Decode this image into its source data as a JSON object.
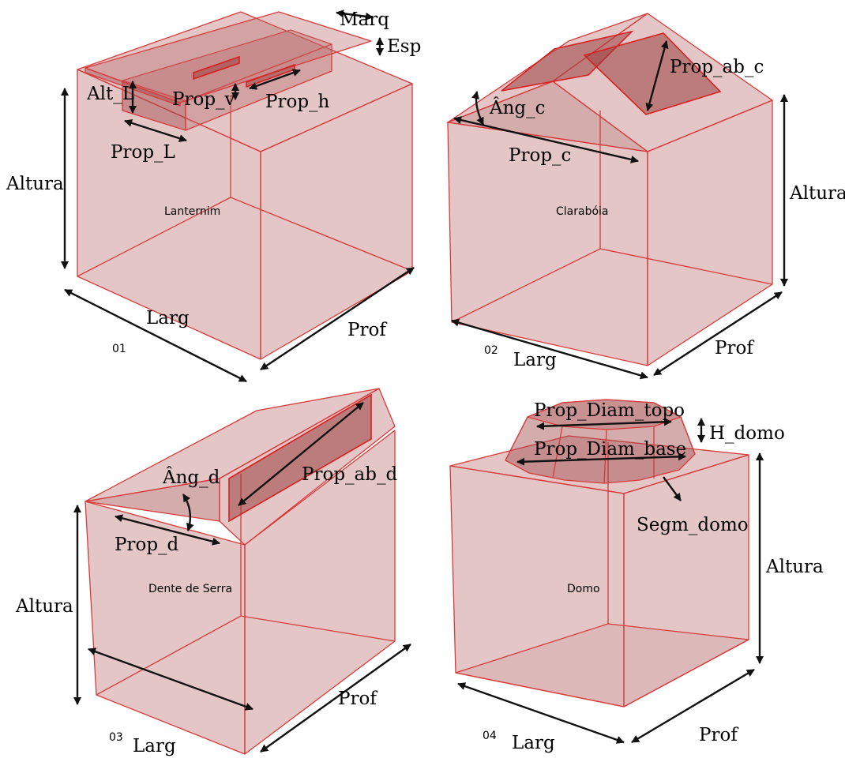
{
  "colors": {
    "volume_fill": "#b86a6a",
    "edge_stroke": "#d83a3a",
    "arrow": "#111111"
  },
  "panels": [
    {
      "number": "01",
      "caption": "Lanternim",
      "labels": {
        "marq": "Marq",
        "esp": "Esp",
        "alt_l": "Alt_L",
        "prop_v": "Prop_v",
        "prop_h": "Prop_h",
        "prop_l": "Prop_L",
        "altura": "Altura",
        "larg": "Larg",
        "prof": "Prof"
      }
    },
    {
      "number": "02",
      "caption": "Clarabóia",
      "labels": {
        "prop_ab_c": "Prop_ab_c",
        "ang_c": "Âng_c",
        "prop_c": "Prop_c",
        "altura": "Altura",
        "larg": "Larg",
        "prof": "Prof"
      }
    },
    {
      "number": "03",
      "caption": "Dente de Serra",
      "labels": {
        "ang_d": "Âng_d",
        "prop_ab_d": "Prop_ab_d",
        "prop_d": "Prop_d",
        "altura": "Altura",
        "larg": "Larg",
        "prof": "Prof"
      }
    },
    {
      "number": "04",
      "caption": "Domo",
      "labels": {
        "prop_diam_topo": "Prop_Diam_topo",
        "h_domo": "H_domo",
        "prop_diam_base": "Prop_Diam_base",
        "segm_domo": "Segm_domo",
        "altura": "Altura",
        "larg": "Larg",
        "prof": "Prof"
      }
    }
  ]
}
